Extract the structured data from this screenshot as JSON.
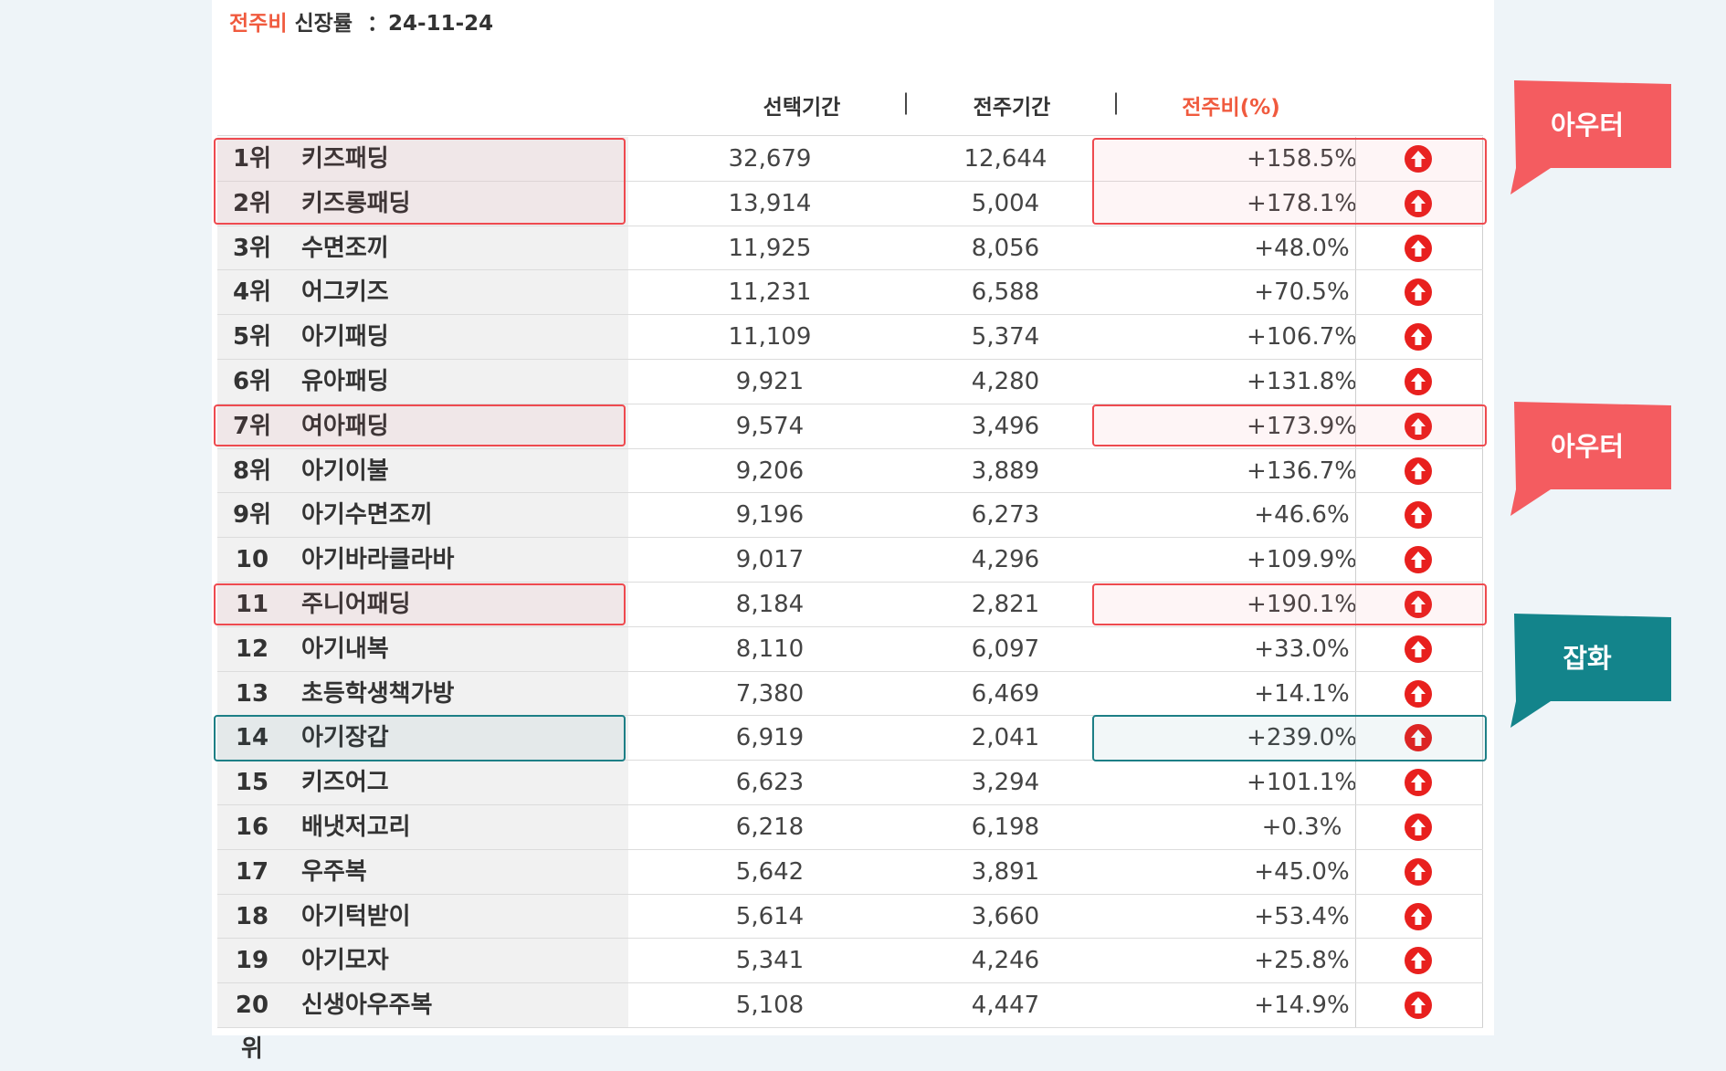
{
  "header": {
    "accent_label": "전주비",
    "label": "신장률",
    "date": "24-11-24"
  },
  "columns": {
    "selected": "선택기간",
    "previous": "전주기간",
    "ratio": "전주비(%)"
  },
  "rows": [
    {
      "rank": "1위",
      "keyword": "키즈패딩",
      "selected": "32,679",
      "previous": "12,644",
      "ratio": "+158.5%"
    },
    {
      "rank": "2위",
      "keyword": "키즈롱패딩",
      "selected": "13,914",
      "previous": "5,004",
      "ratio": "+178.1%"
    },
    {
      "rank": "3위",
      "keyword": "수면조끼",
      "selected": "11,925",
      "previous": "8,056",
      "ratio": "+48.0%"
    },
    {
      "rank": "4위",
      "keyword": "어그키즈",
      "selected": "11,231",
      "previous": "6,588",
      "ratio": "+70.5%"
    },
    {
      "rank": "5위",
      "keyword": "아기패딩",
      "selected": "11,109",
      "previous": "5,374",
      "ratio": "+106.7%"
    },
    {
      "rank": "6위",
      "keyword": "유아패딩",
      "selected": "9,921",
      "previous": "4,280",
      "ratio": "+131.8%"
    },
    {
      "rank": "7위",
      "keyword": "여아패딩",
      "selected": "9,574",
      "previous": "3,496",
      "ratio": "+173.9%"
    },
    {
      "rank": "8위",
      "keyword": "아기이불",
      "selected": "9,206",
      "previous": "3,889",
      "ratio": "+136.7%"
    },
    {
      "rank": "9위",
      "keyword": "아기수면조끼",
      "selected": "9,196",
      "previous": "6,273",
      "ratio": "+46.6%"
    },
    {
      "rank": "10위",
      "keyword": "아기바라클라바",
      "selected": "9,017",
      "previous": "4,296",
      "ratio": "+109.9%"
    },
    {
      "rank": "11위",
      "keyword": "주니어패딩",
      "selected": "8,184",
      "previous": "2,821",
      "ratio": "+190.1%"
    },
    {
      "rank": "12위",
      "keyword": "아기내복",
      "selected": "8,110",
      "previous": "6,097",
      "ratio": "+33.0%"
    },
    {
      "rank": "13위",
      "keyword": "초등학생책가방",
      "selected": "7,380",
      "previous": "6,469",
      "ratio": "+14.1%"
    },
    {
      "rank": "14위",
      "keyword": "아기장갑",
      "selected": "6,919",
      "previous": "2,041",
      "ratio": "+239.0%"
    },
    {
      "rank": "15위",
      "keyword": "키즈어그",
      "selected": "6,623",
      "previous": "3,294",
      "ratio": "+101.1%"
    },
    {
      "rank": "16위",
      "keyword": "배냇저고리",
      "selected": "6,218",
      "previous": "6,198",
      "ratio": "+0.3%"
    },
    {
      "rank": "17위",
      "keyword": "우주복",
      "selected": "5,642",
      "previous": "3,891",
      "ratio": "+45.0%"
    },
    {
      "rank": "18위",
      "keyword": "아기턱받이",
      "selected": "5,614",
      "previous": "3,660",
      "ratio": "+53.4%"
    },
    {
      "rank": "19위",
      "keyword": "아기모자",
      "selected": "5,341",
      "previous": "4,246",
      "ratio": "+25.8%"
    },
    {
      "rank": "20위",
      "keyword": "신생아우주복",
      "selected": "5,108",
      "previous": "4,447",
      "ratio": "+14.9%"
    }
  ],
  "trend_icon": "arrow-up-circle-icon",
  "callouts": [
    {
      "label": "아우터",
      "color": "#f45c60"
    },
    {
      "label": "아우터",
      "color": "#f45c60"
    },
    {
      "label": "잡화",
      "color": "#13848b"
    }
  ],
  "colors": {
    "accent": "#f05a3e",
    "highlight_red": "#ee4a4f",
    "highlight_teal": "#1d7f86",
    "arrow": "#e8201e"
  }
}
